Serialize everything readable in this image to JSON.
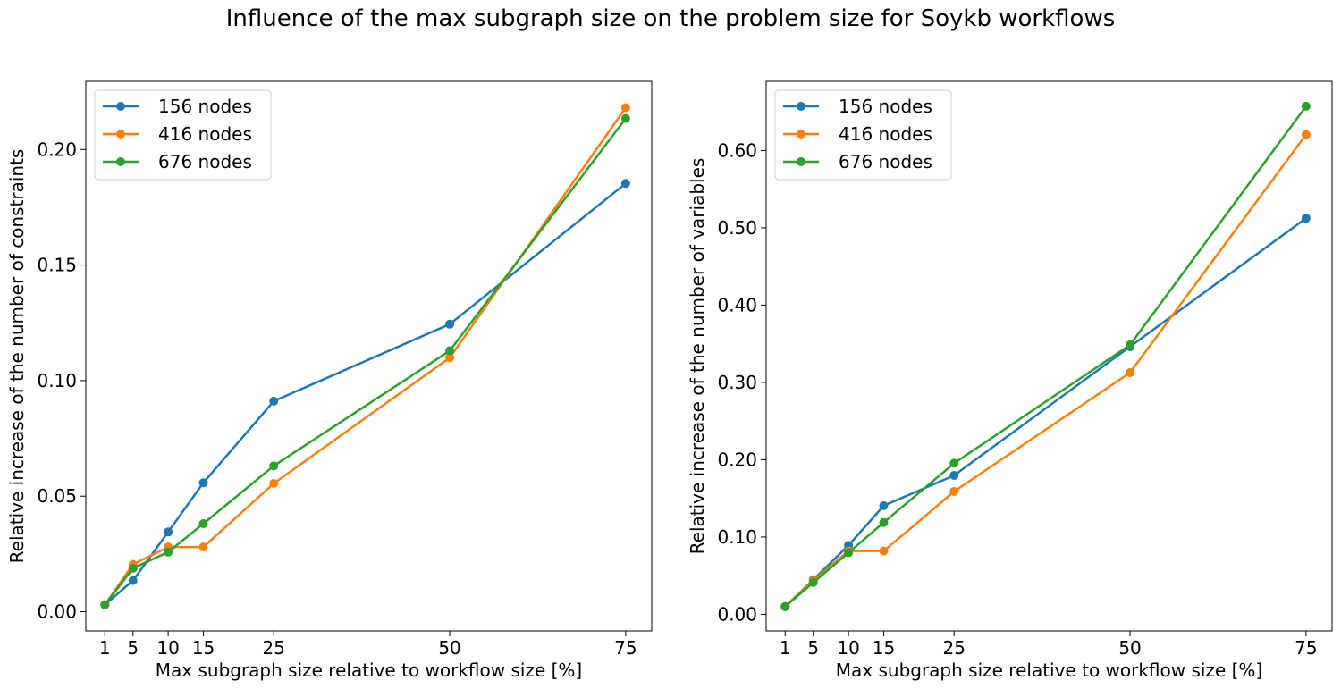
{
  "figure": {
    "title": "Influence of the max subgraph size on the problem size for Soykb workflows"
  },
  "chart_data": [
    {
      "type": "line",
      "x": [
        1,
        5,
        10,
        15,
        25,
        50,
        75
      ],
      "xticks": [
        1,
        5,
        10,
        15,
        25,
        50,
        75
      ],
      "xlabel": "Max subgraph size relative to workflow size [%]",
      "ylabel": "Relative increase of the number of constraints",
      "xlim": [
        -1.7,
        78.7
      ],
      "ylim": [
        -0.0083,
        0.2295
      ],
      "yticks": [
        0.0,
        0.05,
        0.1,
        0.15,
        0.2
      ],
      "ytick_labels": [
        "0.00",
        "0.05",
        "0.10",
        "0.15",
        "0.20"
      ],
      "grid": false,
      "legend_position": "top-left",
      "series": [
        {
          "name": "156 nodes",
          "color": "#1f77b4",
          "values": [
            0.003,
            0.0135,
            0.0345,
            0.0558,
            0.0911,
            0.1244,
            0.1853
          ]
        },
        {
          "name": "416 nodes",
          "color": "#ff7f0e",
          "values": [
            0.003,
            0.0205,
            0.028,
            0.028,
            0.0555,
            0.1099,
            0.2181
          ]
        },
        {
          "name": "676 nodes",
          "color": "#2ca02c",
          "values": [
            0.003,
            0.0188,
            0.0258,
            0.0381,
            0.0631,
            0.1129,
            0.2134
          ]
        }
      ]
    },
    {
      "type": "line",
      "x": [
        1,
        5,
        10,
        15,
        25,
        50,
        75
      ],
      "xticks": [
        1,
        5,
        10,
        15,
        25,
        50,
        75
      ],
      "xlabel": "Max subgraph size relative to workflow size [%]",
      "ylabel": "Relative increase of the number of variables",
      "xlim": [
        -1.7,
        78.7
      ],
      "ylim": [
        -0.0215,
        0.6895
      ],
      "yticks": [
        0.0,
        0.1,
        0.2,
        0.3,
        0.4,
        0.5,
        0.6
      ],
      "ytick_labels": [
        "0.00",
        "0.10",
        "0.20",
        "0.30",
        "0.40",
        "0.50",
        "0.60"
      ],
      "grid": false,
      "legend_position": "top-left",
      "series": [
        {
          "name": "156 nodes",
          "color": "#1f77b4",
          "values": [
            0.01,
            0.0448,
            0.0891,
            0.1405,
            0.1797,
            0.3462,
            0.5124
          ]
        },
        {
          "name": "416 nodes",
          "color": "#ff7f0e",
          "values": [
            0.01,
            0.0436,
            0.0818,
            0.0818,
            0.1589,
            0.3126,
            0.6206
          ]
        },
        {
          "name": "676 nodes",
          "color": "#2ca02c",
          "values": [
            0.01,
            0.0412,
            0.0796,
            0.1188,
            0.1954,
            0.3485,
            0.6573
          ]
        }
      ]
    }
  ]
}
